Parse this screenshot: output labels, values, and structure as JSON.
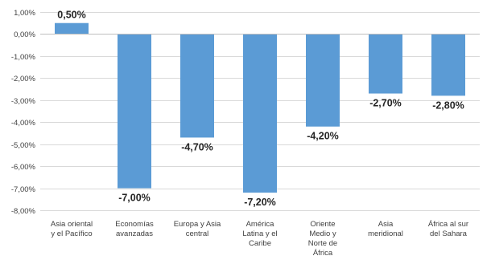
{
  "chart_data": {
    "type": "bar",
    "categories": [
      [
        "Asia oriental",
        "y el Pacífico"
      ],
      [
        "Economías",
        "avanzadas"
      ],
      [
        "Europa y Asia",
        "central"
      ],
      [
        "América",
        "Latina y el",
        "Caribe"
      ],
      [
        "Oriente",
        "Medio y",
        "Norte de",
        "África"
      ],
      [
        "Asia",
        "meridional"
      ],
      [
        "África al sur",
        "del Sahara"
      ]
    ],
    "values": [
      0.5,
      -7.0,
      -4.7,
      -7.2,
      -4.2,
      -2.7,
      -2.8
    ],
    "data_labels": [
      "0,50%",
      "-7,00%",
      "-4,70%",
      "-7,20%",
      "-4,20%",
      "-2,70%",
      "-2,80%"
    ],
    "ylim": [
      -8,
      1
    ],
    "yticks": [
      1,
      0,
      -1,
      -2,
      -3,
      -4,
      -5,
      -6,
      -7,
      -8
    ],
    "ytick_labels": [
      "1,00%",
      "0,00%",
      "-1,00%",
      "-2,00%",
      "-3,00%",
      "-4,00%",
      "-5,00%",
      "-6,00%",
      "-7,00%",
      "-8,00%"
    ],
    "grid": true,
    "colors": {
      "bar": "#5b9bd5"
    }
  }
}
